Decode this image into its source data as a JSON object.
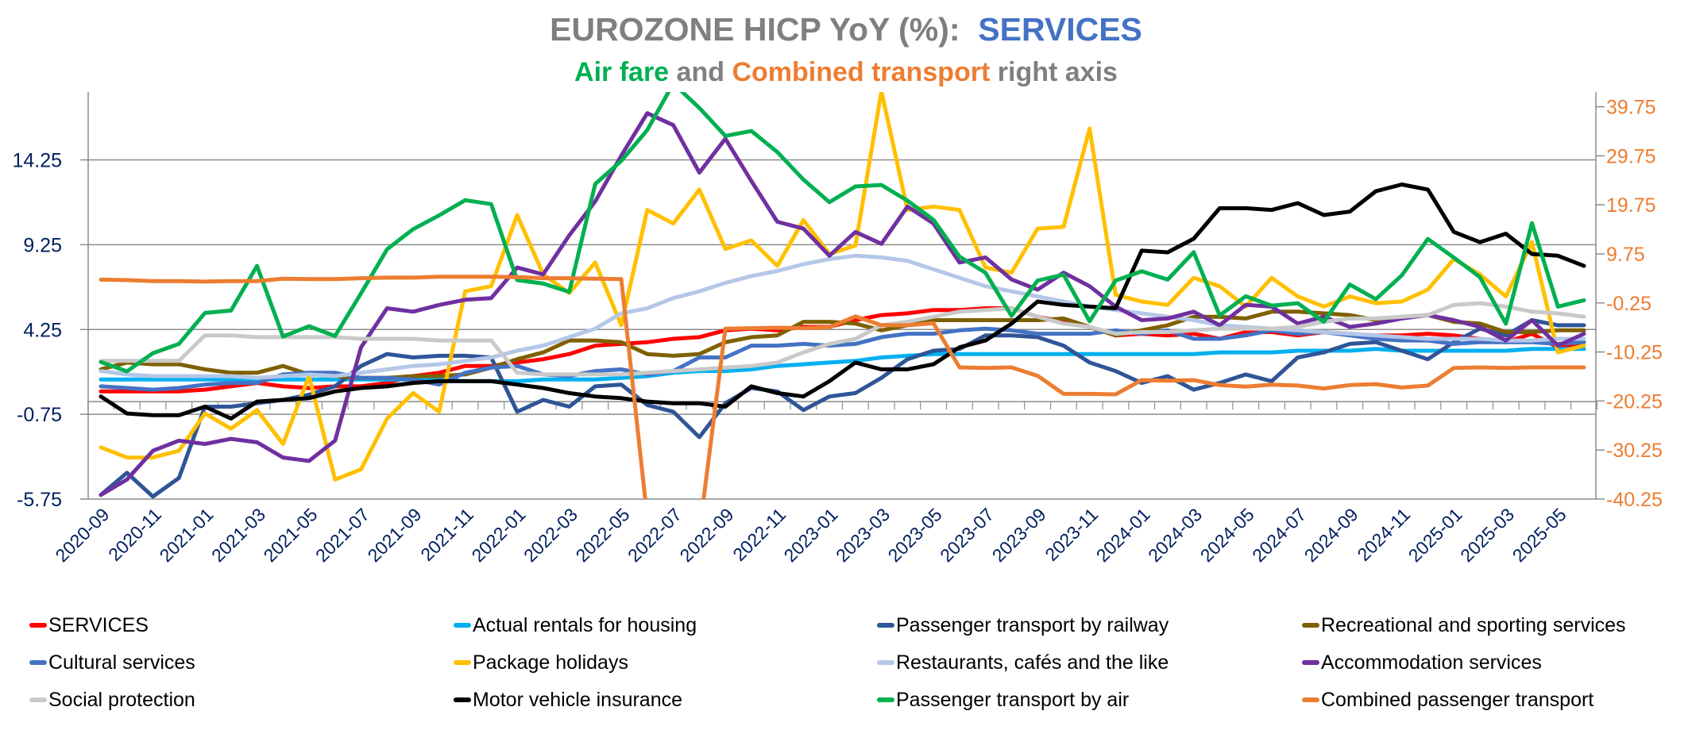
{
  "title": {
    "main_prefix": "EUROZONE HICP YoY (%):",
    "main_accent": "SERVICES",
    "sub_part1": "Air fare",
    "sub_part2": " and ",
    "sub_part3": "Combined transport",
    "sub_part4": " right axis"
  },
  "chart_data": {
    "type": "line",
    "title": "EUROZONE HICP YoY (%): SERVICES",
    "subtitle": "Air fare and Combined transport right axis",
    "xlabel": "",
    "ylabel": "",
    "grid": true,
    "legend_position": "bottom",
    "y_left": {
      "min": -5.75,
      "max": 18.25,
      "ticks": [
        14.25,
        9.25,
        4.25,
        -0.75,
        -5.75
      ],
      "tick_labels": [
        "14.25",
        "9.25",
        "4.25",
        "-0.75",
        "-5.75"
      ],
      "color": "#002060"
    },
    "y_right": {
      "min": -40.25,
      "max": 42.75,
      "ticks": [
        39.75,
        29.75,
        19.75,
        9.75,
        -0.25,
        -10.25,
        -20.25,
        -30.25,
        -40.25
      ],
      "tick_labels": [
        "39.75",
        "29.75",
        "19.75",
        "9.75",
        "-0.25",
        "-10.25",
        "-20.25",
        "-30.25",
        "-40.25"
      ],
      "color": "#ed7d31"
    },
    "x": [
      "2020-09",
      "2020-10",
      "2020-11",
      "2020-12",
      "2021-01",
      "2021-02",
      "2021-03",
      "2021-04",
      "2021-05",
      "2021-06",
      "2021-07",
      "2021-08",
      "2021-09",
      "2021-10",
      "2021-11",
      "2021-12",
      "2022-01",
      "2022-02",
      "2022-03",
      "2022-04",
      "2022-05",
      "2022-06",
      "2022-07",
      "2022-08",
      "2022-09",
      "2022-10",
      "2022-11",
      "2022-12",
      "2023-01",
      "2023-02",
      "2023-03",
      "2023-04",
      "2023-05",
      "2023-06",
      "2023-07",
      "2023-08",
      "2023-09",
      "2023-10",
      "2023-11",
      "2023-12",
      "2024-01",
      "2024-02",
      "2024-03",
      "2024-04",
      "2024-05",
      "2024-06",
      "2024-07",
      "2024-08",
      "2024-09",
      "2024-10",
      "2024-11",
      "2024-12",
      "2025-01",
      "2025-02",
      "2025-03",
      "2025-04",
      "2025-05",
      "2025-06"
    ],
    "x_tick_labels": [
      "2020-09",
      "2020-11",
      "2021-01",
      "2021-03",
      "2021-05",
      "2021-07",
      "2021-09",
      "2021-11",
      "2022-01",
      "2022-03",
      "2022-05",
      "2022-07",
      "2022-09",
      "2022-11",
      "2023-01",
      "2023-03",
      "2023-05",
      "2023-07",
      "2023-09",
      "2023-11",
      "2024-01",
      "2024-03",
      "2024-05",
      "2024-07",
      "2024-09",
      "2024-11",
      "2025-01",
      "2025-03",
      "2025-05"
    ],
    "series": [
      {
        "name": "SERVICES",
        "color": "#ff0000",
        "axis": "left",
        "values": [
          0.6,
          0.6,
          0.6,
          0.6,
          0.7,
          0.9,
          1.1,
          0.9,
          0.8,
          0.9,
          0.9,
          1.1,
          1.5,
          1.7,
          2.1,
          2.1,
          2.3,
          2.5,
          2.8,
          3.3,
          3.4,
          3.5,
          3.7,
          3.8,
          4.2,
          4.3,
          4.2,
          4.4,
          4.4,
          4.8,
          5.1,
          5.2,
          5.4,
          5.4,
          5.5,
          5.5,
          5.0,
          4.7,
          4.4,
          3.9,
          4.0,
          3.9,
          4.0,
          3.7,
          4.1,
          4.1,
          3.9,
          4.1,
          4.0,
          3.9,
          3.9,
          4.0,
          3.9,
          3.7,
          3.5,
          4.0,
          3.2,
          3.3
        ]
      },
      {
        "name": "Actual rentals for housing",
        "color": "#00b0f0",
        "axis": "left",
        "values": [
          1.3,
          1.3,
          1.3,
          1.3,
          1.3,
          1.3,
          1.3,
          1.3,
          1.3,
          1.3,
          1.3,
          1.3,
          1.3,
          1.3,
          1.2,
          1.2,
          1.2,
          1.3,
          1.3,
          1.3,
          1.4,
          1.5,
          1.7,
          1.8,
          1.8,
          1.9,
          2.1,
          2.2,
          2.3,
          2.4,
          2.6,
          2.7,
          2.8,
          2.8,
          2.8,
          2.8,
          2.8,
          2.8,
          2.8,
          2.8,
          2.8,
          2.8,
          2.8,
          2.9,
          2.9,
          2.9,
          3.0,
          3.0,
          3.0,
          3.1,
          3.0,
          3.0,
          3.0,
          3.0,
          3.0,
          3.1,
          3.1,
          3.1
        ]
      },
      {
        "name": "Passenger transport by railway",
        "color": "#2f5597",
        "axis": "left",
        "values": [
          -5.5,
          -4.2,
          -5.6,
          -4.5,
          -0.3,
          -0.3,
          -0.1,
          0.1,
          0.4,
          0.9,
          2.1,
          2.8,
          2.6,
          2.7,
          2.7,
          2.6,
          -0.6,
          0.1,
          -0.3,
          0.9,
          1.0,
          -0.2,
          -0.6,
          -2.1,
          -0.1,
          0.8,
          0.6,
          -0.5,
          0.3,
          0.5,
          1.4,
          2.5,
          3.0,
          3.1,
          3.9,
          3.9,
          3.8,
          3.3,
          2.3,
          1.8,
          1.1,
          1.5,
          0.7,
          1.1,
          1.6,
          1.2,
          2.6,
          2.9,
          3.4,
          3.5,
          3.0,
          2.5,
          3.5,
          4.3,
          3.9,
          4.8,
          4.5,
          4.5
        ]
      },
      {
        "name": "Recreational and sporting services",
        "color": "#7f6000",
        "axis": "left",
        "values": [
          1.9,
          2.3,
          2.2,
          2.2,
          1.9,
          1.7,
          1.7,
          2.1,
          1.6,
          1.5,
          1.4,
          1.4,
          1.5,
          1.5,
          1.6,
          2.0,
          2.5,
          2.9,
          3.6,
          3.6,
          3.5,
          2.8,
          2.7,
          2.8,
          3.5,
          3.8,
          3.9,
          4.7,
          4.7,
          4.6,
          4.2,
          4.5,
          4.8,
          4.8,
          4.8,
          4.8,
          4.8,
          4.9,
          4.4,
          3.9,
          4.2,
          4.5,
          5.0,
          5.0,
          4.9,
          5.3,
          5.3,
          5.2,
          5.1,
          4.8,
          5.0,
          5.1,
          4.7,
          4.6,
          4.1,
          4.1,
          4.2,
          4.2
        ]
      },
      {
        "name": "Cultural services",
        "color": "#4472c4",
        "axis": "left",
        "values": [
          0.9,
          0.8,
          0.7,
          0.8,
          1.0,
          1.1,
          1.1,
          1.6,
          1.7,
          1.7,
          1.4,
          1.4,
          1.3,
          1.0,
          1.7,
          2.0,
          2.1,
          1.6,
          1.5,
          1.8,
          1.9,
          1.6,
          1.8,
          2.6,
          2.6,
          3.3,
          3.3,
          3.4,
          3.3,
          3.4,
          3.8,
          4.0,
          4.0,
          4.2,
          4.3,
          4.2,
          4.0,
          4.0,
          4.0,
          4.2,
          4.0,
          4.2,
          3.7,
          3.7,
          3.9,
          4.2,
          4.0,
          4.1,
          3.9,
          3.7,
          3.6,
          3.6,
          3.4,
          3.5,
          3.5,
          3.5,
          3.4,
          3.5
        ]
      },
      {
        "name": "Package holidays",
        "color": "#ffc000",
        "axis": "left",
        "values": [
          -2.7,
          -3.3,
          -3.3,
          -2.9,
          -0.7,
          -1.6,
          -0.5,
          -2.5,
          1.5,
          -4.6,
          -4.0,
          -1.0,
          0.5,
          -0.6,
          6.5,
          6.8,
          11.0,
          7.5,
          6.4,
          8.2,
          4.5,
          11.3,
          10.5,
          12.5,
          9.0,
          9.5,
          8.0,
          10.7,
          8.7,
          9.2,
          18.3,
          11.3,
          11.5,
          11.3,
          7.9,
          7.6,
          10.2,
          10.3,
          16.1,
          6.3,
          5.9,
          5.7,
          7.3,
          6.8,
          5.6,
          7.3,
          6.2,
          5.6,
          6.2,
          5.8,
          5.9,
          6.6,
          8.4,
          7.5,
          6.2,
          9.4,
          2.9,
          3.3
        ]
      },
      {
        "name": "Restaurants, cafés and the like",
        "color": "#b4c7e7",
        "axis": "left",
        "values": [
          1.8,
          1.6,
          1.5,
          1.5,
          1.5,
          1.5,
          1.4,
          1.5,
          1.6,
          1.5,
          1.7,
          1.9,
          2.1,
          2.2,
          2.4,
          2.6,
          3.0,
          3.3,
          3.8,
          4.3,
          5.2,
          5.5,
          6.1,
          6.5,
          7.0,
          7.4,
          7.7,
          8.1,
          8.4,
          8.6,
          8.5,
          8.3,
          7.8,
          7.3,
          6.8,
          6.5,
          6.2,
          5.9,
          5.6,
          5.4,
          5.2,
          5.0,
          4.8,
          4.5,
          4.4,
          4.3,
          4.2,
          4.1,
          4.0,
          3.9,
          3.8,
          3.7,
          3.7,
          3.7,
          3.6,
          3.6,
          3.7,
          3.7
        ]
      },
      {
        "name": "Accommodation services",
        "color": "#7030a0",
        "axis": "left",
        "values": [
          -5.5,
          -4.6,
          -2.9,
          -2.3,
          -2.5,
          -2.2,
          -2.4,
          -3.3,
          -3.5,
          -2.3,
          3.2,
          5.5,
          5.3,
          5.7,
          6.0,
          6.1,
          7.9,
          7.5,
          9.8,
          11.8,
          14.5,
          17.0,
          16.3,
          13.5,
          15.5,
          13.0,
          10.6,
          10.2,
          8.6,
          10.0,
          9.3,
          11.5,
          10.5,
          8.2,
          8.5,
          7.2,
          6.6,
          7.6,
          6.8,
          5.6,
          4.8,
          4.9,
          5.3,
          4.5,
          5.7,
          5.6,
          4.6,
          5.0,
          4.4,
          4.6,
          4.9,
          5.1,
          4.8,
          4.4,
          3.6,
          4.8,
          3.3,
          4.0
        ]
      },
      {
        "name": "Social protection",
        "color": "#c9c9c9",
        "axis": "left",
        "values": [
          2.4,
          2.4,
          2.4,
          2.4,
          3.9,
          3.9,
          3.8,
          3.8,
          3.8,
          3.8,
          3.7,
          3.7,
          3.7,
          3.6,
          3.6,
          3.6,
          1.7,
          1.6,
          1.6,
          1.6,
          1.6,
          1.7,
          1.8,
          1.9,
          2.0,
          2.1,
          2.3,
          2.9,
          3.4,
          3.7,
          4.5,
          4.7,
          5.0,
          5.3,
          5.4,
          5.5,
          5.0,
          4.6,
          4.4,
          4.0,
          4.1,
          4.1,
          4.2,
          4.3,
          4.3,
          4.3,
          4.4,
          4.7,
          4.9,
          4.9,
          5.0,
          5.1,
          5.7,
          5.8,
          5.6,
          5.3,
          5.2,
          5.0
        ]
      },
      {
        "name": "Motor vehicle insurance",
        "color": "#000000",
        "axis": "left",
        "values": [
          0.3,
          -0.7,
          -0.8,
          -0.8,
          -0.3,
          -1.0,
          0.0,
          0.1,
          0.2,
          0.6,
          0.8,
          0.9,
          1.1,
          1.2,
          1.2,
          1.2,
          1.0,
          0.8,
          0.5,
          0.3,
          0.2,
          0.0,
          -0.1,
          -0.1,
          -0.3,
          0.9,
          0.5,
          0.3,
          1.2,
          2.3,
          1.9,
          1.9,
          2.2,
          3.2,
          3.6,
          4.6,
          5.9,
          5.7,
          5.6,
          5.5,
          8.9,
          8.8,
          9.6,
          11.4,
          11.4,
          11.3,
          11.7,
          11.0,
          11.2,
          12.4,
          12.8,
          12.5,
          10.0,
          9.4,
          9.9,
          8.7,
          8.6,
          8.0
        ]
      },
      {
        "name": "Passenger transport by air",
        "color": "#00b050",
        "axis": "right",
        "values": [
          -12.3,
          -14.2,
          -10.5,
          -8.6,
          -2.3,
          -1.8,
          7.3,
          -7.1,
          -5.0,
          -7.0,
          1.7,
          10.7,
          14.8,
          17.6,
          20.7,
          19.9,
          4.4,
          3.7,
          2.0,
          24.0,
          28.7,
          35.0,
          44.5,
          39.5,
          33.8,
          34.8,
          30.5,
          24.9,
          20.3,
          23.5,
          23.8,
          20.6,
          16.7,
          9.2,
          5.9,
          -2.9,
          4.3,
          5.5,
          -4.0,
          4.3,
          6.2,
          4.5,
          10.1,
          -2.8,
          1.1,
          -0.8,
          -0.3,
          -4.1,
          3.5,
          0.5,
          5.4,
          12.8,
          9.0,
          5.0,
          -4.5,
          16.0,
          -1.0,
          0.3
        ]
      },
      {
        "name": "Combined passenger transport",
        "color": "#ed7d31",
        "axis": "right",
        "values": [
          4.5,
          4.4,
          4.2,
          4.2,
          4.1,
          4.2,
          4.2,
          4.7,
          4.6,
          4.6,
          4.8,
          4.9,
          4.9,
          5.1,
          5.1,
          5.1,
          5.0,
          4.8,
          4.8,
          4.7,
          4.6,
          -44.0,
          -44.0,
          -47.0,
          -5.5,
          -5.4,
          -5.3,
          -5.4,
          -5.2,
          -3.0,
          -4.8,
          -4.8,
          -4.4,
          -13.4,
          -13.5,
          -13.4,
          -15.1,
          -18.8,
          -18.8,
          -18.9,
          -16.0,
          -16.1,
          -16.0,
          -17.0,
          -17.3,
          -16.9,
          -17.1,
          -17.7,
          -17.0,
          -16.8,
          -17.5,
          -17.1,
          -13.5,
          -13.4,
          -13.5,
          -13.4,
          -13.4,
          -13.4
        ]
      }
    ]
  },
  "legend": {
    "items": [
      {
        "label": "SERVICES",
        "color": "#ff0000"
      },
      {
        "label": "Actual rentals for housing",
        "color": "#00b0f0"
      },
      {
        "label": "Passenger transport by railway",
        "color": "#2f5597"
      },
      {
        "label": "Recreational and sporting services",
        "color": "#7f6000"
      },
      {
        "label": "Cultural services",
        "color": "#4472c4"
      },
      {
        "label": "Package holidays",
        "color": "#ffc000"
      },
      {
        "label": "Restaurants, cafés and the like",
        "color": "#b4c7e7"
      },
      {
        "label": "Accommodation services",
        "color": "#7030a0"
      },
      {
        "label": "Social protection",
        "color": "#c9c9c9"
      },
      {
        "label": "Motor vehicle insurance",
        "color": "#000000"
      },
      {
        "label": "Passenger transport by air",
        "color": "#00b050"
      },
      {
        "label": "Combined passenger transport",
        "color": "#ed7d31"
      }
    ]
  }
}
